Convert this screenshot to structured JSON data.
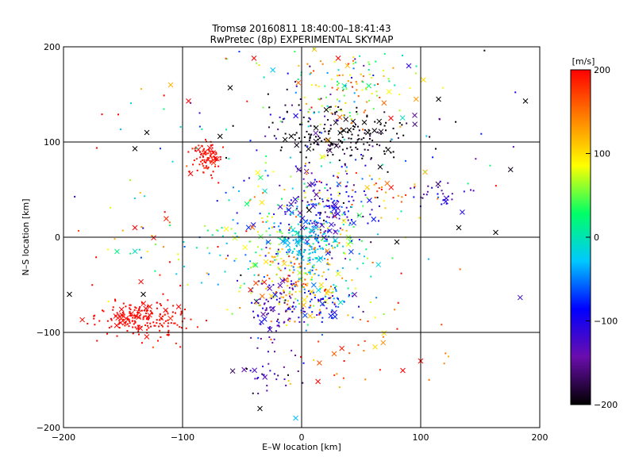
{
  "chart_data": {
    "type": "scatter",
    "title": "Tromsø 20160811 18:40:00–18:41:43",
    "subtitle": "RwPretec (8p) EXPERIMENTAL SKYMAP",
    "xlabel": "E–W location [km]",
    "ylabel": "N–S location [km]",
    "xlim": [
      -200,
      200
    ],
    "ylim": [
      -200,
      200
    ],
    "xticks": [
      "−200",
      "−100",
      "0",
      "100",
      "200"
    ],
    "yticks": [
      "−200",
      "−100",
      "0",
      "100",
      "200"
    ],
    "grid": true,
    "marker_styles": [
      "dot",
      "x"
    ],
    "colorbar": {
      "label": "[m/s]",
      "range": [
        -200,
        200
      ],
      "ticks": [
        "−200",
        "−100",
        "0",
        "100",
        "200"
      ],
      "colormap": [
        "#000000",
        "#6a0dad",
        "#0000ff",
        "#00c8ff",
        "#00ff66",
        "#ffff00",
        "#ff8000",
        "#ff0000"
      ]
    },
    "clusters": [
      {
        "x": 35,
        "y": 105,
        "sx": 28,
        "sy": 14,
        "n": 170,
        "v": -195,
        "vs": 15
      },
      {
        "x": 0,
        "y": 120,
        "sx": 18,
        "sy": 20,
        "n": 50,
        "v": -150,
        "vs": 60
      },
      {
        "x": 20,
        "y": 30,
        "sx": 18,
        "sy": 22,
        "n": 160,
        "v": -110,
        "vs": 30
      },
      {
        "x": 0,
        "y": 0,
        "sx": 40,
        "sy": 40,
        "n": 320,
        "v": 0,
        "vs": 80
      },
      {
        "x": 5,
        "y": -10,
        "sx": 12,
        "sy": 12,
        "n": 110,
        "v": -30,
        "vs": 15
      },
      {
        "x": -5,
        "y": -45,
        "sx": 20,
        "sy": 20,
        "n": 140,
        "v": 120,
        "vs": 35
      },
      {
        "x": -20,
        "y": -75,
        "sx": 10,
        "sy": 14,
        "n": 90,
        "v": -130,
        "vs": 25
      },
      {
        "x": 20,
        "y": -70,
        "sx": 15,
        "sy": 12,
        "n": 70,
        "v": -80,
        "vs": 35
      },
      {
        "x": -140,
        "y": -85,
        "sx": 18,
        "sy": 9,
        "n": 160,
        "v": 198,
        "vs": 3
      },
      {
        "x": -110,
        "y": -90,
        "sx": 10,
        "sy": 12,
        "n": 40,
        "v": 195,
        "vs": 5
      },
      {
        "x": -78,
        "y": 85,
        "sx": 6,
        "sy": 8,
        "n": 90,
        "v": 195,
        "vs": 6
      },
      {
        "x": 35,
        "y": 155,
        "sx": 22,
        "sy": 20,
        "n": 90,
        "v": 110,
        "vs": 50
      },
      {
        "x": 30,
        "y": 170,
        "sx": 40,
        "sy": 20,
        "n": 60,
        "v": 10,
        "vs": 60
      },
      {
        "x": 120,
        "y": 45,
        "sx": 10,
        "sy": 8,
        "n": 30,
        "v": -130,
        "vs": 30
      },
      {
        "x": 65,
        "y": 50,
        "sx": 22,
        "sy": 15,
        "n": 40,
        "v": 140,
        "vs": 40
      },
      {
        "x": -30,
        "y": -140,
        "sx": 15,
        "sy": 12,
        "n": 30,
        "v": -150,
        "vs": 30
      },
      {
        "x": 45,
        "y": -115,
        "sx": 40,
        "sy": 25,
        "n": 40,
        "v": 160,
        "vs": 40
      },
      {
        "x": -100,
        "y": 120,
        "sx": 40,
        "sy": 40,
        "n": 30,
        "v": 60,
        "vs": 140
      },
      {
        "x": 130,
        "y": 100,
        "sx": 40,
        "sy": 60,
        "n": 25,
        "v": -80,
        "vs": 110
      },
      {
        "x": -90,
        "y": -20,
        "sx": 50,
        "sy": 40,
        "n": 50,
        "v": 80,
        "vs": 120
      },
      {
        "x": -150,
        "y": 10,
        "sx": 30,
        "sy": 40,
        "n": 10,
        "v": 150,
        "vs": 50
      }
    ],
    "x_markers": [
      {
        "x": -130,
        "y": 110,
        "v": -200
      },
      {
        "x": -140,
        "y": 93,
        "v": -200
      },
      {
        "x": -40,
        "y": 188,
        "v": 200
      },
      {
        "x": 188,
        "y": 143,
        "v": -200
      },
      {
        "x": 115,
        "y": 145,
        "v": -200
      },
      {
        "x": 95,
        "y": 128,
        "v": -150
      },
      {
        "x": 90,
        "y": 180,
        "v": -110
      },
      {
        "x": 132,
        "y": 10,
        "v": -200
      },
      {
        "x": 163,
        "y": 5,
        "v": -200
      },
      {
        "x": -110,
        "y": 160,
        "v": 120
      },
      {
        "x": -95,
        "y": 143,
        "v": 200
      },
      {
        "x": -60,
        "y": 157,
        "v": -200
      },
      {
        "x": -155,
        "y": -15,
        "v": 20
      },
      {
        "x": -133,
        "y": -60,
        "v": -200
      },
      {
        "x": -35,
        "y": -180,
        "v": -200
      },
      {
        "x": -5,
        "y": -190,
        "v": -30
      },
      {
        "x": 100,
        "y": -130,
        "v": 200
      },
      {
        "x": 85,
        "y": -140,
        "v": 200
      },
      {
        "x": -195,
        "y": -60,
        "v": -200
      },
      {
        "x": 80,
        "y": -5,
        "v": -200
      },
      {
        "x": -140,
        "y": 10,
        "v": 200
      },
      {
        "x": 75,
        "y": 125,
        "v": 200
      }
    ]
  }
}
